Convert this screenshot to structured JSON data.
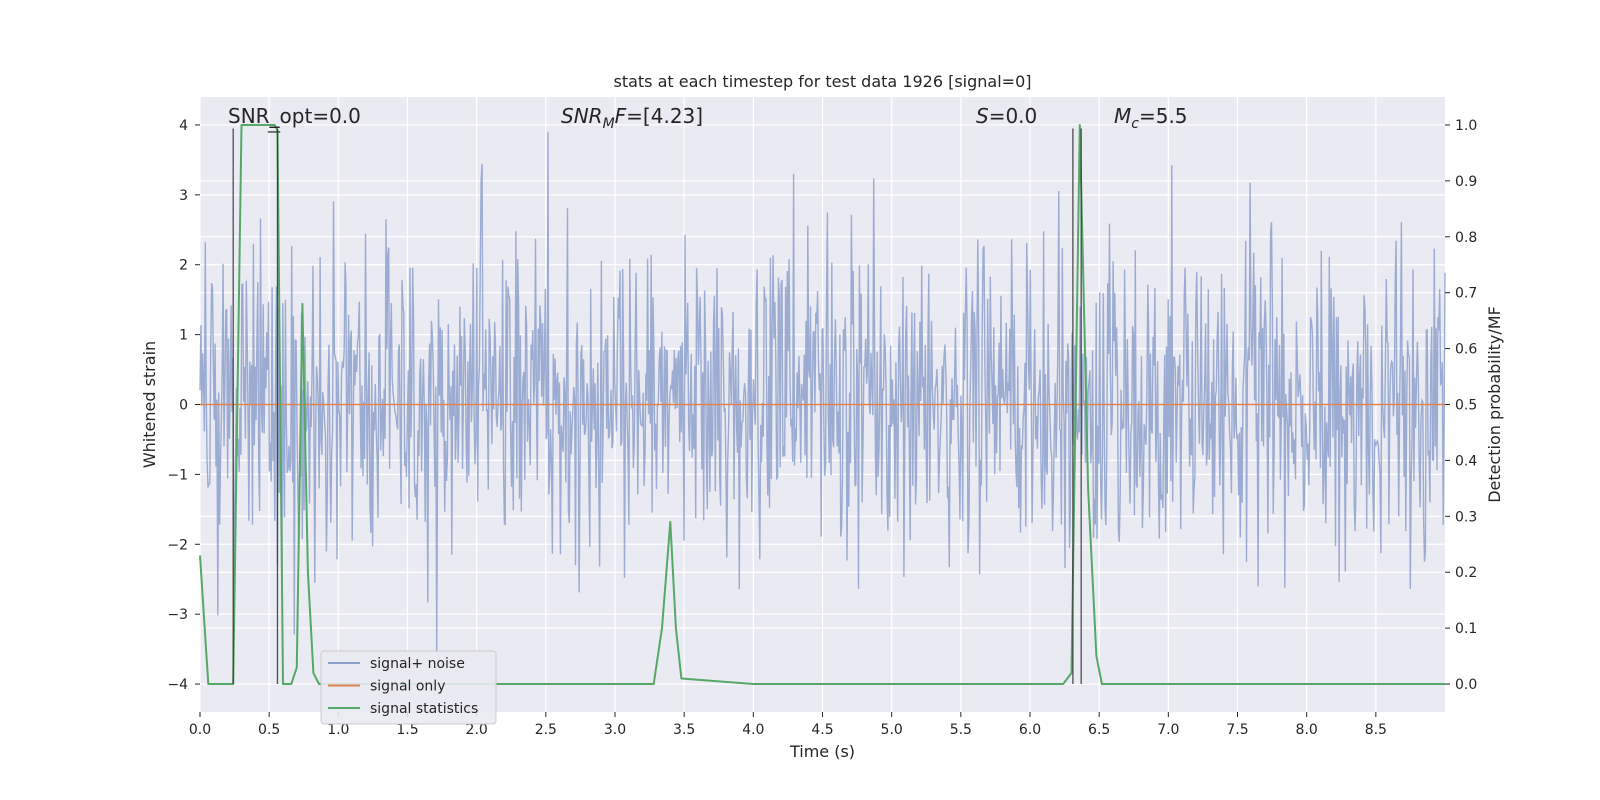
{
  "chart_data": {
    "type": "line",
    "title": "stats at each timestep for test data 1926 [signal=0]",
    "xlabel": "Time (s)",
    "ylabel_left": "Whitened strain",
    "ylabel_right": "Detection probability/MF",
    "xlim": [
      0.0,
      9.0
    ],
    "ylim_left": [
      -4.4,
      4.4
    ],
    "ylim_right": [
      -0.05,
      1.05
    ],
    "x_ticks": [
      "0.0",
      "0.5",
      "1.0",
      "1.5",
      "2.0",
      "2.5",
      "3.0",
      "3.5",
      "4.0",
      "4.5",
      "5.0",
      "5.5",
      "6.0",
      "6.5",
      "7.0",
      "7.5",
      "8.0",
      "8.5"
    ],
    "y_left_ticks": [
      "4",
      "3",
      "2",
      "1",
      "0",
      "−1",
      "−2",
      "−3",
      "−4"
    ],
    "y_right_ticks": [
      "1.0",
      "0.9",
      "0.8",
      "0.7",
      "0.6",
      "0.5",
      "0.4",
      "0.3",
      "0.2",
      "0.1",
      "0.0"
    ],
    "grid": true,
    "legend_position": "lower-left",
    "colors": {
      "noise": "#8da0cb",
      "signal": "#dd8452",
      "stats": "#55a868",
      "vline": "#333333",
      "background": "#eaeaf2",
      "grid": "#ffffff"
    },
    "annotations": {
      "snr_opt": "SNR_opt=0.0",
      "snr_mf_base": "SNR",
      "snr_mf_sub": "M",
      "snr_mf_rest": "F=[4.23]",
      "s_var": "S",
      "s_rest": "=0.0",
      "mc_var": "M",
      "mc_sub": "c",
      "mc_rest": "=5.5"
    },
    "series": [
      {
        "name": "signal+ noise",
        "axis": "left",
        "description": "whitened strain noise, bands roughly -2.5 to 2.5 with spikes to ±3.9"
      },
      {
        "name": "signal only",
        "axis": "left",
        "x": [
          0.0,
          9.0
        ],
        "y": [
          0.0,
          0.0
        ]
      },
      {
        "name": "signal statistics",
        "axis": "right",
        "x": [
          0.0,
          0.06,
          0.12,
          0.18,
          0.24,
          0.3,
          0.36,
          0.42,
          0.48,
          0.54,
          0.56,
          0.6,
          0.62,
          0.66,
          0.7,
          0.74,
          0.78,
          0.82,
          0.86,
          0.9,
          1.0,
          2.0,
          3.0,
          3.28,
          3.34,
          3.4,
          3.44,
          3.48,
          4.0,
          5.0,
          6.0,
          6.24,
          6.3,
          6.36,
          6.42,
          6.48,
          6.52,
          7.0,
          8.0,
          9.0
        ],
        "y": [
          0.23,
          0.0,
          0.0,
          0.0,
          0.0,
          1.0,
          1.0,
          1.0,
          1.0,
          1.0,
          0.99,
          0.0,
          0.0,
          0.0,
          0.03,
          0.68,
          0.2,
          0.02,
          0.0,
          0.0,
          0.0,
          0.0,
          0.0,
          0.0,
          0.1,
          0.29,
          0.1,
          0.01,
          0.0,
          0.0,
          0.0,
          0.0,
          0.02,
          1.0,
          0.35,
          0.05,
          0.0,
          0.0,
          0.0,
          0.0
        ]
      }
    ],
    "vertical_lines_x": [
      0.24,
      0.56,
      6.31,
      6.37
    ]
  }
}
